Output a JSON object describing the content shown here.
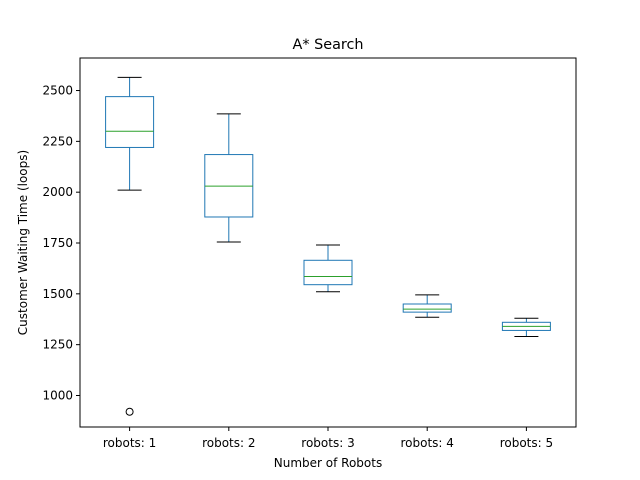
{
  "chart_data": {
    "type": "boxplot",
    "title": "A* Search",
    "xlabel": "Number of Robots",
    "ylabel": "Customer Waiting Time (loops)",
    "categories": [
      "robots: 1",
      "robots: 2",
      "robots: 3",
      "robots: 4",
      "robots: 5"
    ],
    "boxes": [
      {
        "whisker_low": 2010,
        "q1": 2220,
        "median": 2300,
        "q3": 2470,
        "whisker_high": 2565,
        "outliers": [
          920
        ]
      },
      {
        "whisker_low": 1755,
        "q1": 1878,
        "median": 2030,
        "q3": 2185,
        "whisker_high": 2385,
        "outliers": []
      },
      {
        "whisker_low": 1510,
        "q1": 1545,
        "median": 1585,
        "q3": 1665,
        "whisker_high": 1740,
        "outliers": []
      },
      {
        "whisker_low": 1385,
        "q1": 1410,
        "median": 1425,
        "q3": 1450,
        "whisker_high": 1495,
        "outliers": []
      },
      {
        "whisker_low": 1290,
        "q1": 1320,
        "median": 1340,
        "q3": 1360,
        "whisker_high": 1380,
        "outliers": []
      }
    ],
    "yticks": [
      1000,
      1250,
      1500,
      1750,
      2000,
      2250,
      2500
    ],
    "ylim": [
      845,
      2660
    ],
    "grid": false,
    "colors": {
      "box": "#1f77b4",
      "median": "#2ca02c",
      "cap": "#000000",
      "outlier": "#000000"
    }
  }
}
